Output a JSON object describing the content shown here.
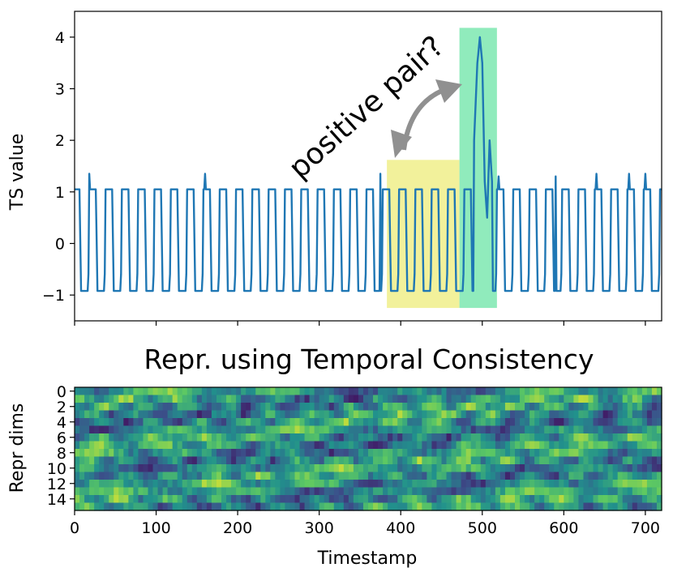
{
  "chart_data": [
    {
      "type": "line",
      "title": "",
      "xlabel": "",
      "ylabel": "TS value",
      "xlim": [
        0,
        720
      ],
      "ylim": [
        -1.5,
        4.5
      ],
      "yticks": [
        4,
        3,
        2,
        1,
        0,
        -1
      ],
      "ytick_labels": [
        "4",
        "3",
        "2",
        "1",
        "0",
        "−1"
      ],
      "series": [
        {
          "color": "#1f77b4",
          "description_period": 20,
          "high": 1.05,
          "low": -0.92,
          "spikes": [
            [
              18,
              1.35
            ],
            [
              160,
              1.35
            ],
            [
              375,
              1.35
            ],
            [
              520,
              1.6
            ],
            [
              520,
              1.3
            ],
            [
              590,
              1.3
            ],
            [
              640,
              1.35
            ],
            [
              680,
              1.35
            ],
            [
              700,
              1.35
            ]
          ],
          "anomaly": [
            [
              490,
              2.0
            ],
            [
              494,
              3.5
            ],
            [
              497,
              4.0
            ],
            [
              500,
              3.5
            ],
            [
              503,
              1.2
            ],
            [
              506,
              0.5
            ],
            [
              509,
              2.0
            ],
            [
              512,
              1.2
            ]
          ]
        }
      ],
      "highlights": [
        {
          "x0": 383,
          "x1": 472,
          "y0": -1.25,
          "y1": 1.62,
          "color": "#f0ef8a"
        },
        {
          "x0": 472,
          "x1": 518,
          "y0": -1.25,
          "y1": 4.18,
          "color": "#7de8b0"
        }
      ],
      "annotation": {
        "text": "positive pair?",
        "arrow_color": "#909090"
      }
    },
    {
      "type": "heatmap",
      "title": "Repr. using Temporal Consistency",
      "xlabel": "Timestamp",
      "ylabel": "Repr dims",
      "xlim": [
        0,
        720
      ],
      "xticks": [
        0,
        100,
        200,
        300,
        400,
        500,
        600,
        700
      ],
      "yticks": [
        0,
        2,
        4,
        6,
        8,
        10,
        12,
        14
      ],
      "rows": 16,
      "colormap": "viridis"
    }
  ]
}
